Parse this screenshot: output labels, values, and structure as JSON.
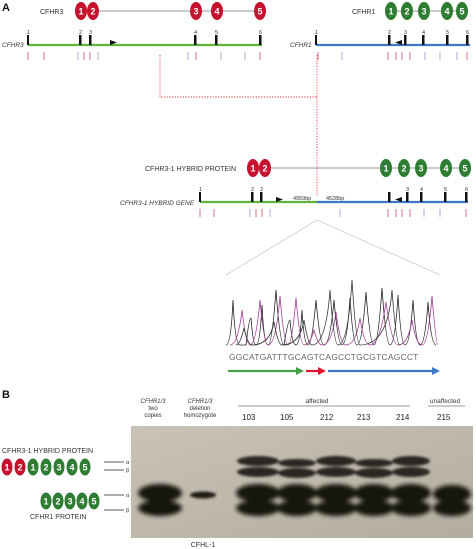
{
  "panel_a": {
    "label": "A",
    "cfhr3": {
      "protein_label": "CFHR3",
      "gene_label": "CFHR3",
      "exon_numbers": [
        "1",
        "2",
        "3",
        "4",
        "5",
        "6"
      ],
      "domains": [
        "1",
        "2",
        "3",
        "4",
        "5"
      ]
    },
    "cfhr1": {
      "protein_label": "CFHR1",
      "gene_label": "CFHR1",
      "exon_numbers": [
        "1",
        "2",
        "3",
        "4",
        "5",
        "6"
      ],
      "domains": [
        "1",
        "2",
        "3",
        "4",
        "5"
      ]
    },
    "hybrid": {
      "protein_label": "CFHR3-1 HYBRID PROTEIN",
      "gene_label": "CFHR3-1 HYBRID GENE",
      "exon_numbers": [
        "1",
        "2",
        "3",
        "4",
        "5",
        "6"
      ],
      "domains_red": [
        "1",
        "2"
      ],
      "domains_green": [
        "1",
        "2",
        "3",
        "4",
        "5"
      ],
      "bp_left": "4959bp",
      "bp_right": "4528bp"
    },
    "sequence": "GGCATGATTTGCAGTCAGCCTGCGTCAGCCT"
  },
  "panel_b": {
    "label": "B",
    "columns": [
      {
        "line1": "CFHR1/3",
        "line2": "two",
        "line3": "copies"
      },
      {
        "line1": "CFHR1/3",
        "line2": "deletion",
        "line3": "homozygote"
      }
    ],
    "group_affected": "affected",
    "group_unaffected": "unaffected",
    "samples": [
      "103",
      "105",
      "212",
      "213",
      "214",
      "215"
    ],
    "hybrid_protein_label": "CFHR3-1 HYBRID PROTEIN",
    "cfhr1_protein_label": "CFHR1 PROTEIN",
    "hybrid_domains_red": [
      "1",
      "2"
    ],
    "hybrid_domains_green": [
      "1",
      "2",
      "3",
      "4",
      "5"
    ],
    "cfhr1_domains": [
      "1",
      "2",
      "3",
      "4",
      "5"
    ],
    "band_marks": [
      "α",
      "β",
      "α",
      "β"
    ],
    "bottom_label": "CFHL-1"
  },
  "colors": {
    "red": "#c4122f",
    "green": "#2e7d32",
    "gene_green": "#5fb43a",
    "gene_blue": "#3d78c8",
    "arrow_red": "#e2142d",
    "arrow_blue": "#3d78c8",
    "arrow_green": "#43a047",
    "dotted_red": "#d33"
  }
}
